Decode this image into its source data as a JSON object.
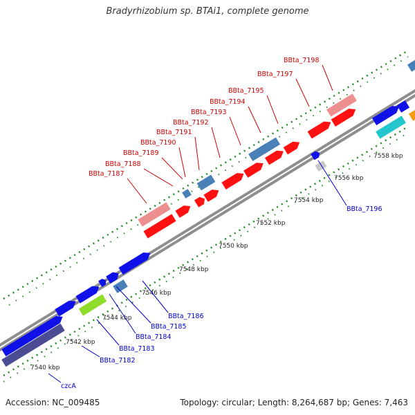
{
  "header": {
    "title": "Bradyrhizobium sp. BTAi1, complete genome"
  },
  "footer": {
    "accession": "Accession: NC_009485",
    "summary": "Topology: circular; Length: 8,264,687 bp; Genes: 7,463"
  },
  "colors": {
    "backbone": "#8e8e8e",
    "dots": "#1f8a1f",
    "top_label": "#cc0000",
    "bottom_label": "#0000cc",
    "gene_red": "#ff1111",
    "gene_pink": "#ee8f8f",
    "gene_steel": "#4a80b8",
    "gene_blue": "#1010e8",
    "gene_navy": "#4c4c94",
    "gene_green": "#8fdc2a",
    "gene_cyan": "#22c6cc",
    "gene_gray": "#c8c8c8",
    "gene_orange": "#f39c12"
  },
  "ticks": [
    "7540 kbp",
    "7542 kbp",
    "7544 kbp",
    "7546 kbp",
    "7548 kbp",
    "7550 kbp",
    "7552 kbp",
    "7554 kbp",
    "7556 kbp",
    "7558 kbp"
  ],
  "top_genes": [
    "BBta_7187",
    "BBta_7188",
    "BBta_7189",
    "BBta_7190",
    "BBta_7191",
    "BBta_7192",
    "BBta_7193",
    "BBta_7194",
    "BBta_7195",
    "BBta_7197",
    "BBta_7198"
  ],
  "bottom_genes": [
    "czcA",
    "BBta_7182",
    "BBta_7183",
    "BBta_7184",
    "BBta_7185",
    "BBta_7186",
    "BBta_7196"
  ]
}
